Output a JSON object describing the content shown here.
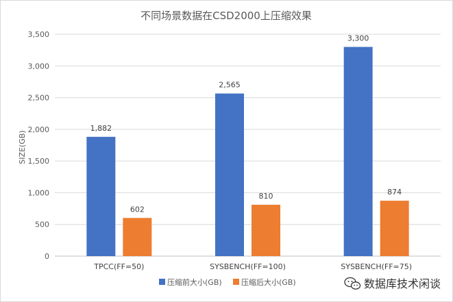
{
  "chart_data": {
    "type": "bar",
    "title": "不同场景数据在CSD2000上压缩效果",
    "xlabel": "",
    "ylabel": "SIZE(GB)",
    "categories": [
      "TPCC(FF=50)",
      "SYSBENCH(FF=100)",
      "SYSBENCH(FF=75)"
    ],
    "series": [
      {
        "name": "压缩前大小(GB)",
        "values": [
          1882,
          2565,
          3300
        ],
        "labels": [
          "1,882",
          "2,565",
          "3,300"
        ],
        "color": "#4472c4"
      },
      {
        "name": "压缩后大小(GB)",
        "values": [
          602,
          810,
          874
        ],
        "labels": [
          "602",
          "810",
          "874"
        ],
        "color": "#ed7d31"
      }
    ],
    "ylim": [
      0,
      3500
    ],
    "yticks": [
      0,
      500,
      1000,
      1500,
      2000,
      2500,
      3000,
      3500
    ],
    "ytick_labels": [
      "0",
      "500",
      "1,000",
      "1,500",
      "2,000",
      "2,500",
      "3,000",
      "3,500"
    ],
    "grid": true,
    "legend": "bottom"
  },
  "watermark": {
    "text": "数据库技术闲谈",
    "icon": "wechat-icon"
  }
}
